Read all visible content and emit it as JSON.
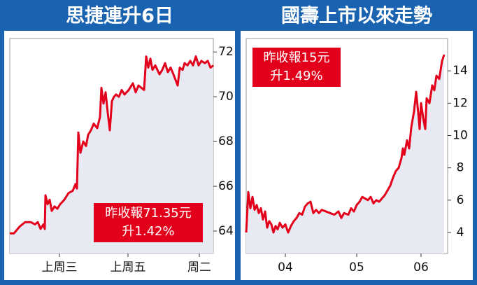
{
  "chart_data": [
    {
      "type": "line",
      "title": "思捷連升6日",
      "color": "#e3001b",
      "x": [
        0,
        6,
        14,
        22,
        30,
        36,
        40,
        44,
        48,
        50,
        51,
        54,
        57,
        60,
        64,
        68,
        72,
        78,
        84,
        90,
        94,
        96,
        98,
        101,
        105,
        109,
        112,
        116,
        120,
        125,
        129,
        131,
        134,
        137,
        140,
        143,
        146,
        149,
        152,
        156,
        160,
        164,
        170,
        176,
        180,
        184,
        188,
        192,
        195,
        198,
        201,
        204,
        208,
        214,
        218,
        222,
        226,
        230,
        234,
        240,
        243,
        247,
        250,
        254,
        258,
        262,
        266,
        270,
        274,
        279,
        283,
        287,
        291
      ],
      "values": [
        63.9,
        63.9,
        64.2,
        64.4,
        64.4,
        64.3,
        64.4,
        64.1,
        64.3,
        64.1,
        65.6,
        65.2,
        65.4,
        64.9,
        65.1,
        65,
        65.2,
        65.4,
        65.7,
        65.8,
        66.1,
        65.9,
        68.4,
        67.5,
        68,
        67.8,
        68.3,
        68.5,
        68.8,
        68.6,
        69.1,
        70.4,
        69.7,
        70.2,
        69.3,
        68.5,
        69.8,
        70,
        70.1,
        70,
        70.3,
        70.1,
        70.3,
        70.6,
        70.2,
        70.5,
        70.4,
        70.3,
        71.8,
        71.3,
        71.7,
        71.2,
        71.4,
        71,
        71.2,
        71.5,
        71.1,
        71.3,
        71,
        70.5,
        71.3,
        71.2,
        71.5,
        71.4,
        71.6,
        71.4,
        71.8,
        71.4,
        71.6,
        71.5,
        71.6,
        71.3,
        71.4
      ],
      "xlim": [
        0,
        291
      ],
      "ylim": [
        63,
        72.6
      ],
      "xticks": [
        {
          "value": 71,
          "label": "上周三"
        },
        {
          "value": 169,
          "label": "上周五"
        },
        {
          "value": 271,
          "label": "周二"
        }
      ],
      "yticks": [
        64,
        66,
        68,
        70,
        72
      ],
      "annotations": [
        "昨收報71.35元",
        "升1.42%"
      ]
    },
    {
      "type": "line",
      "title": "國壽上市以來走勢",
      "color": "#e3001b",
      "x": [
        0,
        3,
        6,
        9,
        12,
        15,
        18,
        21,
        24,
        27,
        30,
        33,
        36,
        39,
        42,
        45,
        48,
        52,
        56,
        60,
        64,
        68,
        72,
        76,
        80,
        84,
        88,
        92,
        96,
        100,
        104,
        108,
        114,
        120,
        126,
        132,
        136,
        140,
        146,
        150,
        154,
        158,
        162,
        166,
        170,
        174,
        178,
        182,
        186,
        190,
        194,
        198,
        202,
        206,
        210,
        214,
        218,
        222,
        224,
        226,
        230,
        233,
        236,
        240,
        243,
        246,
        248,
        250,
        253,
        256,
        258,
        262,
        266,
        269,
        272,
        276,
        280,
        283
      ],
      "values": [
        4,
        6.5,
        5.5,
        6.2,
        5.4,
        5.7,
        5.2,
        5.5,
        4.8,
        5.3,
        4.3,
        4.7,
        4.5,
        4,
        4.4,
        4.2,
        4.6,
        4.3,
        4.5,
        4,
        4.4,
        4.7,
        4.9,
        5.2,
        5.1,
        5.6,
        5.8,
        5.9,
        5.2,
        5.4,
        5.2,
        5.4,
        5.3,
        5.2,
        5.1,
        5.3,
        4.9,
        5.2,
        5.1,
        5.5,
        5.3,
        5.7,
        5.9,
        6.2,
        6.1,
        6,
        6.2,
        5.8,
        6,
        5.9,
        6.1,
        6.3,
        6.6,
        6.9,
        7.4,
        7.8,
        8,
        8.6,
        9.2,
        8.8,
        9.7,
        9.2,
        10.5,
        11.5,
        12.7,
        11.4,
        10.4,
        12,
        11.1,
        10.4,
        12.3,
        12,
        13.1,
        12.8,
        13.7,
        13.5,
        14.6,
        15
      ],
      "xlim": [
        0,
        288
      ],
      "ylim": [
        2.7,
        16
      ],
      "xticks": [
        {
          "value": 56,
          "label": "04"
        },
        {
          "value": 158,
          "label": "05"
        },
        {
          "value": 250,
          "label": "06"
        }
      ],
      "yticks": [
        4,
        6,
        8,
        10,
        12,
        14
      ],
      "annotations": [
        "昨收報15元",
        "升1.49%"
      ]
    }
  ]
}
